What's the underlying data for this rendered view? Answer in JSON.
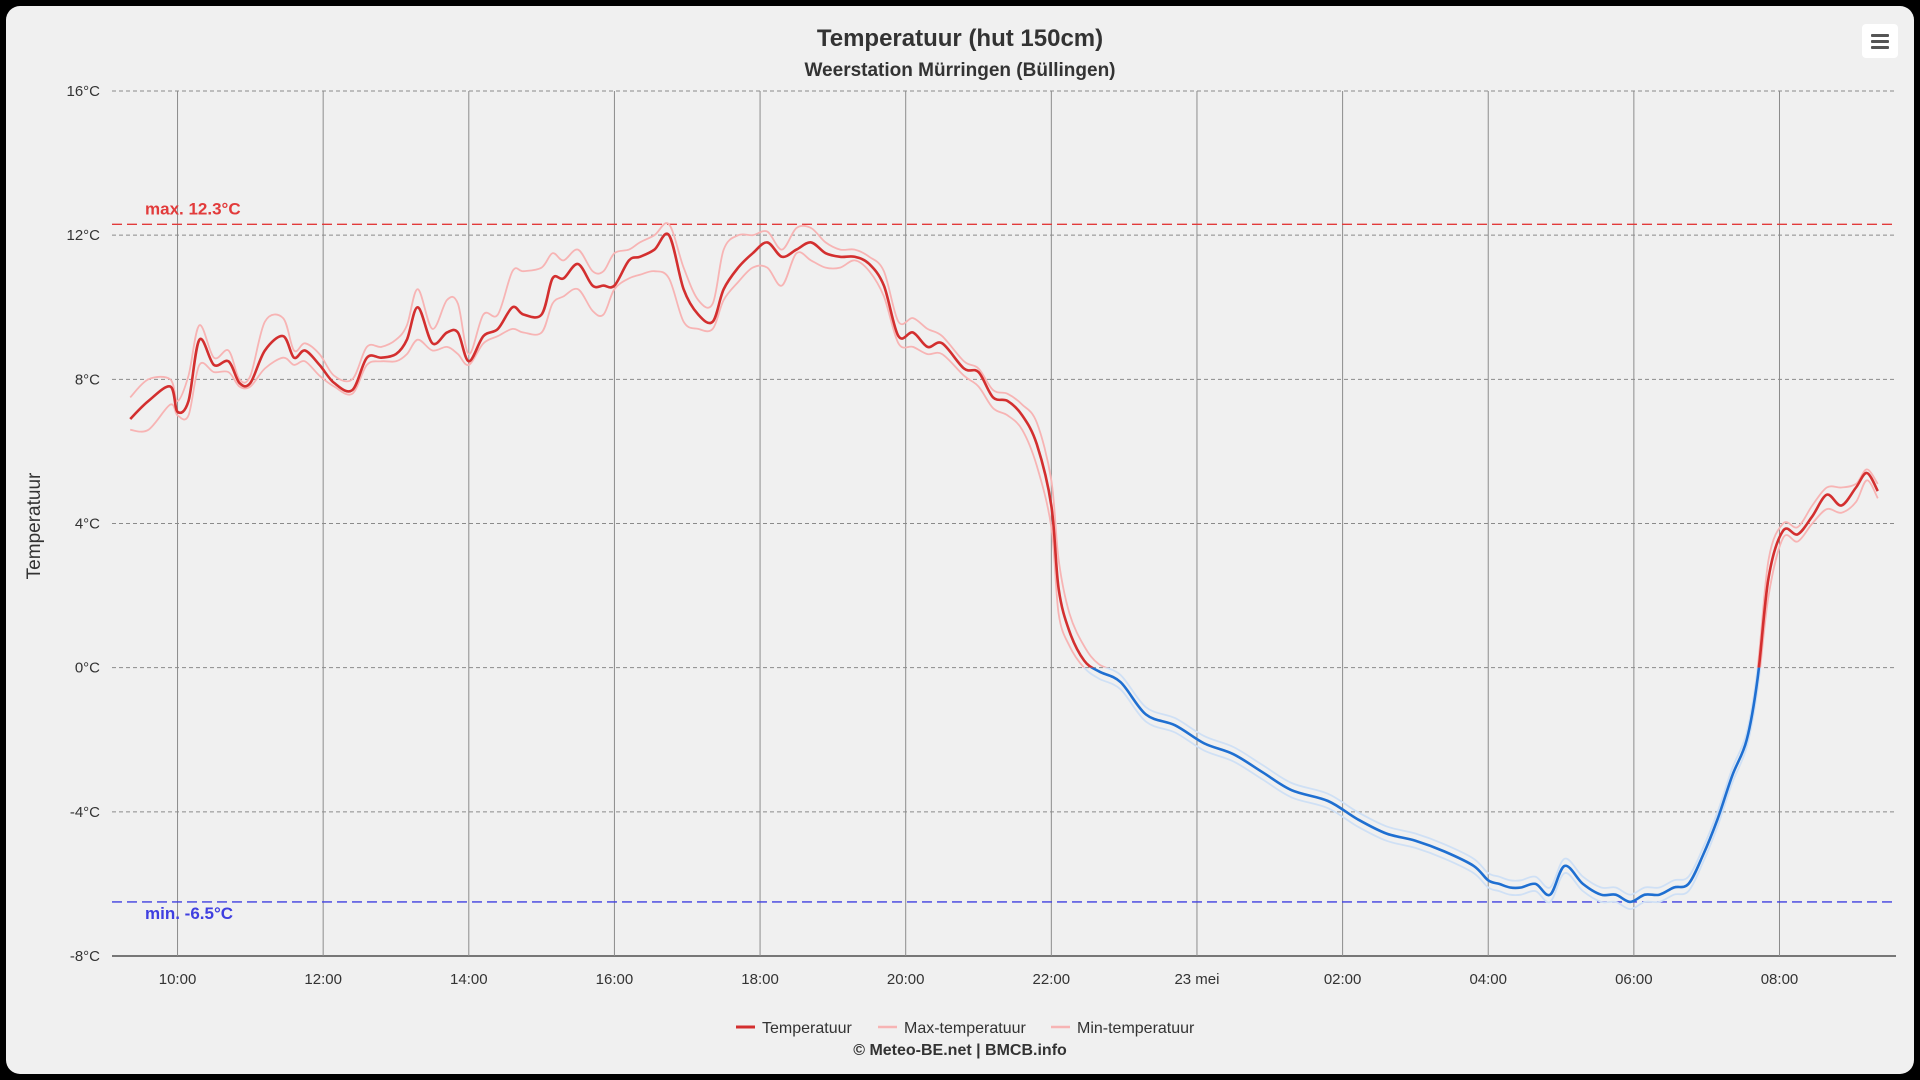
{
  "chart_data": {
    "type": "line",
    "title": "Temperatuur (hut 150cm)",
    "subtitle": "Weerstation Mürringen (Büllingen)",
    "ylabel": "Temperatuur",
    "xlabel": "",
    "ylim": [
      -8,
      16
    ],
    "y_ticks": [
      "16°C",
      "12°C",
      "8°C",
      "4°C",
      "0°C",
      "-4°C",
      "-8°C"
    ],
    "y_tick_values": [
      16,
      12,
      8,
      4,
      0,
      -4,
      -8
    ],
    "x_range": [
      9.1,
      33.6
    ],
    "x_ticks": [
      "10:00",
      "12:00",
      "14:00",
      "16:00",
      "18:00",
      "20:00",
      "22:00",
      "23 mei",
      "02:00",
      "04:00",
      "06:00",
      "08:00"
    ],
    "x_tick_values": [
      10,
      12,
      14,
      16,
      18,
      20,
      22,
      24,
      26,
      28,
      30,
      32
    ],
    "grid": true,
    "legend_position": "bottom-center",
    "zero_threshold_colors": {
      "above": "#d32f2f",
      "below": "#1f6fd1"
    },
    "plot_lines": [
      {
        "label": "max. 12.3°C",
        "value": 12.3,
        "color": "#e23b3b"
      },
      {
        "label": "min. -6.5°C",
        "value": -6.5,
        "color": "#3f3fe0"
      }
    ],
    "series": [
      {
        "name": "Temperatuur",
        "color": "#d32f2f",
        "x": [
          9.35,
          9.6,
          9.9,
          10.0,
          10.15,
          10.3,
          10.5,
          10.7,
          10.85,
          11.0,
          11.2,
          11.45,
          11.6,
          11.75,
          11.95,
          12.15,
          12.4,
          12.6,
          12.8,
          13.0,
          13.15,
          13.3,
          13.5,
          13.7,
          13.85,
          14.0,
          14.2,
          14.4,
          14.6,
          14.75,
          15.0,
          15.15,
          15.3,
          15.5,
          15.7,
          15.85,
          16.0,
          16.2,
          16.35,
          16.55,
          16.75,
          16.95,
          17.15,
          17.35,
          17.5,
          17.7,
          17.9,
          18.1,
          18.3,
          18.5,
          18.7,
          18.9,
          19.1,
          19.3,
          19.5,
          19.7,
          19.9,
          20.1,
          20.3,
          20.5,
          20.8,
          21.0,
          21.2,
          21.4,
          21.6,
          21.8,
          22.0,
          22.1,
          22.25,
          22.45,
          22.65,
          22.95,
          23.3,
          23.7,
          24.1,
          24.5,
          24.9,
          25.3,
          25.8,
          26.2,
          26.6,
          27.0,
          27.4,
          27.8,
          28.0,
          28.15,
          28.3,
          28.45,
          28.65,
          28.85,
          29.05,
          29.3,
          29.55,
          29.75,
          29.95,
          30.15,
          30.35,
          30.55,
          30.75,
          30.95,
          31.15,
          31.35,
          31.55,
          31.7,
          31.85,
          32.05,
          32.25,
          32.45,
          32.65,
          32.85,
          33.05,
          33.2,
          33.35
        ],
        "y": [
          6.9,
          7.4,
          7.8,
          7.1,
          7.4,
          9.1,
          8.4,
          8.5,
          7.9,
          7.9,
          8.8,
          9.2,
          8.6,
          8.8,
          8.4,
          7.9,
          7.7,
          8.6,
          8.6,
          8.7,
          9.1,
          10.0,
          9.0,
          9.3,
          9.3,
          8.5,
          9.2,
          9.4,
          10.0,
          9.8,
          9.8,
          10.8,
          10.8,
          11.2,
          10.6,
          10.6,
          10.6,
          11.3,
          11.4,
          11.6,
          12.0,
          10.5,
          9.8,
          9.6,
          10.5,
          11.1,
          11.5,
          11.8,
          11.4,
          11.6,
          11.8,
          11.5,
          11.4,
          11.4,
          11.2,
          10.6,
          9.2,
          9.3,
          8.9,
          9.0,
          8.3,
          8.2,
          7.5,
          7.4,
          7.0,
          6.2,
          4.5,
          2.2,
          1.0,
          0.2,
          -0.1,
          -0.4,
          -1.3,
          -1.6,
          -2.1,
          -2.4,
          -2.9,
          -3.4,
          -3.7,
          -4.2,
          -4.6,
          -4.8,
          -5.1,
          -5.5,
          -5.9,
          -6.0,
          -6.1,
          -6.1,
          -6.0,
          -6.3,
          -5.5,
          -6.0,
          -6.3,
          -6.3,
          -6.5,
          -6.3,
          -6.3,
          -6.1,
          -6.0,
          -5.2,
          -4.2,
          -3.0,
          -2.0,
          -0.3,
          2.5,
          3.8,
          3.7,
          4.2,
          4.8,
          4.5,
          5.0,
          5.4,
          4.9
        ],
        "stroke_width": 2.6
      },
      {
        "name": "Max-temperatuur",
        "color": "#f7b4b4",
        "x": [
          9.35,
          9.6,
          9.9,
          10.0,
          10.15,
          10.3,
          10.5,
          10.7,
          10.85,
          11.0,
          11.2,
          11.45,
          11.6,
          11.75,
          11.95,
          12.15,
          12.4,
          12.6,
          12.8,
          13.0,
          13.15,
          13.3,
          13.5,
          13.7,
          13.85,
          14.0,
          14.2,
          14.4,
          14.6,
          14.75,
          15.0,
          15.15,
          15.3,
          15.5,
          15.7,
          15.85,
          16.0,
          16.2,
          16.35,
          16.55,
          16.75,
          16.95,
          17.15,
          17.35,
          17.5,
          17.7,
          17.9,
          18.1,
          18.3,
          18.5,
          18.7,
          18.9,
          19.1,
          19.3,
          19.5,
          19.7,
          19.9,
          20.1,
          20.3,
          20.5,
          20.8,
          21.0,
          21.2,
          21.4,
          21.6,
          21.8,
          22.0,
          22.1,
          22.25,
          22.45,
          22.65,
          22.95,
          23.3,
          23.7,
          24.1,
          24.5,
          24.9,
          25.3,
          25.8,
          26.2,
          26.6,
          27.0,
          27.4,
          27.8,
          28.0,
          28.15,
          28.3,
          28.45,
          28.65,
          28.85,
          29.05,
          29.3,
          29.55,
          29.75,
          29.95,
          30.15,
          30.35,
          30.55,
          30.75,
          30.95,
          31.15,
          31.35,
          31.55,
          31.7,
          31.85,
          32.05,
          32.25,
          32.45,
          32.65,
          32.85,
          33.05,
          33.2,
          33.35
        ],
        "y": [
          7.5,
          8.0,
          8.0,
          7.4,
          8.1,
          9.5,
          8.6,
          8.8,
          8.0,
          8.1,
          9.6,
          9.7,
          8.8,
          9.0,
          8.7,
          8.1,
          8.0,
          8.9,
          8.9,
          9.1,
          9.5,
          10.5,
          9.4,
          10.2,
          10.1,
          8.7,
          9.8,
          9.8,
          11.0,
          11.0,
          11.1,
          11.5,
          11.3,
          11.6,
          11.0,
          11.0,
          11.5,
          11.6,
          11.8,
          12.0,
          12.3,
          11.1,
          10.2,
          10.1,
          11.6,
          12.0,
          12.0,
          12.1,
          11.6,
          12.2,
          12.2,
          11.8,
          11.6,
          11.6,
          11.4,
          11.0,
          9.6,
          9.7,
          9.4,
          9.2,
          8.5,
          8.3,
          7.7,
          7.6,
          7.3,
          6.8,
          5.2,
          3.0,
          1.5,
          0.6,
          0.1,
          -0.2,
          -1.1,
          -1.4,
          -1.9,
          -2.2,
          -2.7,
          -3.2,
          -3.5,
          -4.0,
          -4.4,
          -4.6,
          -4.9,
          -5.3,
          -5.7,
          -5.8,
          -5.9,
          -5.9,
          -5.8,
          -6.1,
          -5.3,
          -5.8,
          -6.1,
          -6.1,
          -6.3,
          -6.1,
          -6.1,
          -5.9,
          -5.8,
          -5.0,
          -4.0,
          -2.8,
          -1.8,
          0.0,
          3.0,
          4.0,
          3.9,
          4.5,
          5.0,
          5.0,
          5.1,
          5.5,
          5.1
        ],
        "stroke_width": 1.8
      },
      {
        "name": "Min-temperatuur",
        "color": "#f7b4b4",
        "x": [
          9.35,
          9.6,
          9.9,
          10.0,
          10.15,
          10.3,
          10.5,
          10.7,
          10.85,
          11.0,
          11.2,
          11.45,
          11.6,
          11.75,
          11.95,
          12.15,
          12.4,
          12.6,
          12.8,
          13.0,
          13.15,
          13.3,
          13.5,
          13.7,
          13.85,
          14.0,
          14.2,
          14.4,
          14.6,
          14.75,
          15.0,
          15.15,
          15.3,
          15.5,
          15.7,
          15.85,
          16.0,
          16.2,
          16.35,
          16.55,
          16.75,
          16.95,
          17.15,
          17.35,
          17.5,
          17.7,
          17.9,
          18.1,
          18.3,
          18.5,
          18.7,
          18.9,
          19.1,
          19.3,
          19.5,
          19.7,
          19.9,
          20.1,
          20.3,
          20.5,
          20.8,
          21.0,
          21.2,
          21.4,
          21.6,
          21.8,
          22.0,
          22.1,
          22.25,
          22.45,
          22.65,
          22.95,
          23.3,
          23.7,
          24.1,
          24.5,
          24.9,
          25.3,
          25.8,
          26.2,
          26.6,
          27.0,
          27.4,
          27.8,
          28.0,
          28.15,
          28.3,
          28.45,
          28.65,
          28.85,
          29.05,
          29.3,
          29.55,
          29.75,
          29.95,
          30.15,
          30.35,
          30.55,
          30.75,
          30.95,
          31.15,
          31.35,
          31.55,
          31.7,
          31.85,
          32.05,
          32.25,
          32.45,
          32.65,
          32.85,
          33.05,
          33.2,
          33.35
        ],
        "y": [
          6.6,
          6.6,
          7.3,
          7.0,
          7.0,
          8.4,
          8.2,
          8.2,
          7.8,
          7.8,
          8.3,
          8.6,
          8.4,
          8.5,
          8.1,
          7.8,
          7.6,
          8.4,
          8.5,
          8.5,
          8.7,
          9.1,
          8.8,
          8.9,
          8.7,
          8.4,
          9.0,
          9.2,
          9.4,
          9.3,
          9.3,
          10.1,
          10.3,
          10.5,
          9.9,
          9.8,
          10.5,
          10.8,
          10.9,
          11.0,
          10.8,
          9.6,
          9.4,
          9.4,
          10.2,
          10.7,
          11.1,
          11.1,
          10.6,
          11.5,
          11.3,
          11.1,
          11.1,
          11.3,
          11.0,
          10.3,
          9.0,
          8.9,
          8.7,
          8.7,
          8.1,
          7.8,
          7.2,
          7.0,
          6.6,
          5.6,
          3.9,
          1.5,
          0.6,
          -0.0,
          -0.3,
          -0.6,
          -1.5,
          -1.8,
          -2.3,
          -2.6,
          -3.1,
          -3.6,
          -3.9,
          -4.4,
          -4.8,
          -5.0,
          -5.3,
          -5.7,
          -6.1,
          -6.2,
          -6.3,
          -6.3,
          -6.2,
          -6.5,
          -5.7,
          -6.2,
          -6.5,
          -6.5,
          -6.7,
          -6.5,
          -6.5,
          -6.3,
          -6.2,
          -5.4,
          -4.4,
          -3.2,
          -2.2,
          -0.6,
          2.0,
          3.6,
          3.5,
          4.0,
          4.4,
          4.3,
          4.6,
          5.2,
          4.7
        ],
        "stroke_width": 1.8
      }
    ],
    "credits": "© Meteo-BE.net | BMCB.info"
  }
}
